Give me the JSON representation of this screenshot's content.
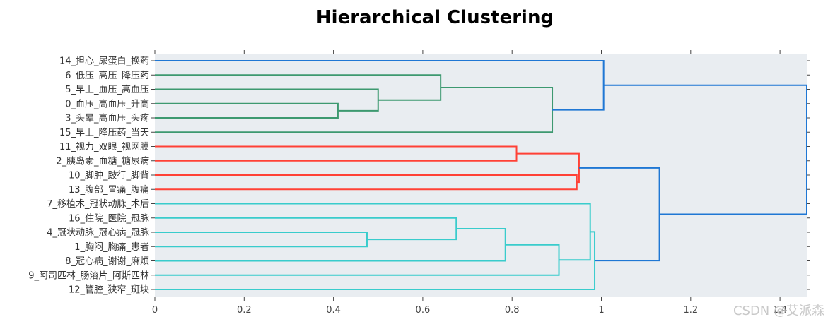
{
  "chart_data": {
    "type": "dendrogram",
    "title": "Hierarchical Clustering",
    "orientation": "horizontal",
    "xlim": [
      0,
      1.46
    ],
    "x_ticks": [
      0,
      0.2,
      0.4,
      0.6,
      0.8,
      1,
      1.2,
      1.4
    ],
    "x_tick_labels": [
      "0",
      "0.2",
      "0.4",
      "0.6",
      "0.8",
      "1",
      "1.2",
      "1.4"
    ],
    "leaves": [
      "14_担心_尿蛋白_换药",
      "6_低压_高压_降压药",
      "5_早上_血压_高血压",
      "0_血压_高血压_升高",
      "3_头晕_高血压_头疼",
      "15_早上_降压药_当天",
      "11_视力_双眼_视网膜",
      "2_胰岛素_血糖_糖尿病",
      "10_脚肿_跛行_脚背",
      "13_腹部_胃痛_腹痛",
      "7_移植术_冠状动脉_术后",
      "16_住院_医院_冠脉",
      "4_冠状动脉_冠心病_冠脉",
      "1_胸闷_胸痛_患者",
      "8_冠心病_谢谢_麻烦",
      "9_阿司匹林_肠溶片_阿斯匹林",
      "12_管腔_狭窄_斑块"
    ],
    "colors": {
      "above_threshold": "#1f77d4",
      "cluster_green": "#3d9970",
      "cluster_red": "#ff4136",
      "cluster_cyan": "#39cccc"
    },
    "merges": [
      {
        "a": "L3",
        "b": "L4",
        "height": 0.41,
        "color": "cluster_green"
      },
      {
        "a": "L2",
        "b": "M0",
        "height": 0.5,
        "color": "cluster_green"
      },
      {
        "a": "L1",
        "b": "M1",
        "height": 0.64,
        "color": "cluster_green"
      },
      {
        "a": "M2",
        "b": "L5",
        "height": 0.89,
        "color": "cluster_green"
      },
      {
        "a": "L0",
        "b": "M3",
        "height": 1.005,
        "color": "above_threshold"
      },
      {
        "a": "L6",
        "b": "L7",
        "height": 0.81,
        "color": "cluster_red"
      },
      {
        "a": "L8",
        "b": "L9",
        "height": 0.945,
        "color": "cluster_red"
      },
      {
        "a": "M5",
        "b": "M6",
        "height": 0.95,
        "color": "cluster_red"
      },
      {
        "a": "L12",
        "b": "L13",
        "height": 0.475,
        "color": "cluster_cyan"
      },
      {
        "a": "L11",
        "b": "M8",
        "height": 0.675,
        "color": "cluster_cyan"
      },
      {
        "a": "M9",
        "b": "L14",
        "height": 0.785,
        "color": "cluster_cyan"
      },
      {
        "a": "M10",
        "b": "L15",
        "height": 0.905,
        "color": "cluster_cyan"
      },
      {
        "a": "L10",
        "b": "M11",
        "height": 0.975,
        "color": "cluster_cyan"
      },
      {
        "a": "M12",
        "b": "L16",
        "height": 0.985,
        "color": "cluster_cyan"
      },
      {
        "a": "M7",
        "b": "M13",
        "height": 1.13,
        "color": "above_threshold"
      },
      {
        "a": "M4",
        "b": "M14",
        "height": 1.46,
        "color": "above_threshold"
      }
    ],
    "grid": false
  },
  "watermark": "CSDN @艾派森"
}
